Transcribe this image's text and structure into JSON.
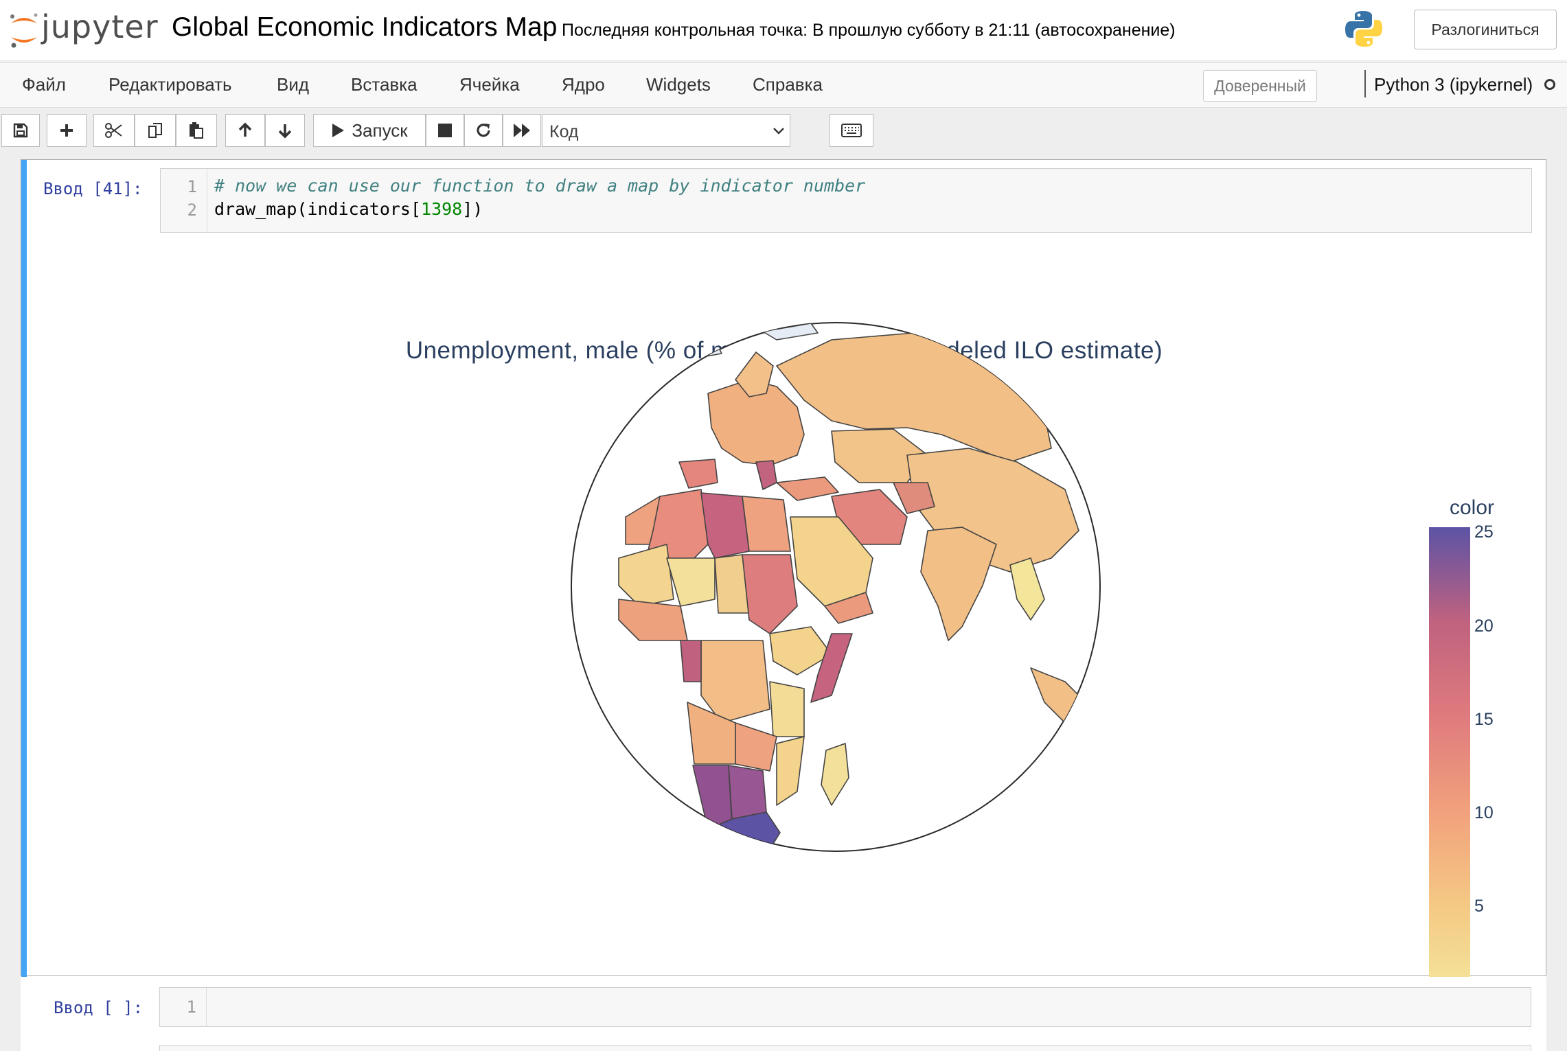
{
  "header": {
    "logo_text": "jupyter",
    "notebook_name": "Global Economic Indicators Map",
    "checkpoint": "Последняя контрольная точка: В прошлую субботу в 21:11   (автосохранение)",
    "logout_label": "Разлогиниться"
  },
  "menubar": {
    "items": [
      "Файл",
      "Редактировать",
      "Вид",
      "Вставка",
      "Ячейка",
      "Ядро",
      "Widgets",
      "Справка"
    ],
    "trusted_label": "Доверенный",
    "kernel_name": "Python 3 (ipykernel)"
  },
  "toolbar": {
    "run_label": "Запуск",
    "cell_type": "Код",
    "icons": [
      "save-icon",
      "plus-icon",
      "scissors-icon",
      "copy-icon",
      "paste-icon",
      "arrow-up-icon",
      "arrow-down-icon",
      "play-icon",
      "stop-icon",
      "restart-icon",
      "fast-forward-icon",
      "keyboard-icon"
    ]
  },
  "cells": [
    {
      "prompt": "Ввод [41]:",
      "lines": [
        "1",
        "2"
      ],
      "code": {
        "comment": "# now we can use our function to draw a map by indicator number",
        "call_prefix": "draw_map(indicators[",
        "call_number": "1398",
        "call_suffix": "])"
      }
    },
    {
      "prompt": "Ввод [ ]:",
      "lines": [
        "1"
      ]
    }
  ],
  "chart_data": {
    "type": "choropleth",
    "projection": "orthographic",
    "title": "Unemployment, male (% of male labor force) (modeled ILO estimate)",
    "colorbar": {
      "title": "color",
      "range": [
        0,
        25
      ],
      "ticks": [
        "25",
        "20",
        "15",
        "10",
        "5"
      ],
      "colorscale": [
        "#f3e79b",
        "#f5c884",
        "#f1a07c",
        "#df7a7e",
        "#c0627f",
        "#925291",
        "#5c53a5"
      ]
    },
    "regions": [
      {
        "name": "South Africa",
        "value": 25
      },
      {
        "name": "Namibia",
        "value": 21
      },
      {
        "name": "Botswana",
        "value": 20
      },
      {
        "name": "Libya",
        "value": 16
      },
      {
        "name": "Somalia",
        "value": 16
      },
      {
        "name": "Sudan",
        "value": 12
      },
      {
        "name": "Iran",
        "value": 10
      },
      {
        "name": "Algeria",
        "value": 10
      },
      {
        "name": "Egypt",
        "value": 8
      },
      {
        "name": "Russia",
        "value": 5
      },
      {
        "name": "Kazakhstan",
        "value": 5
      },
      {
        "name": "China",
        "value": 4
      },
      {
        "name": "India",
        "value": 5
      },
      {
        "name": "Saudi Arabia",
        "value": 3
      },
      {
        "name": "Niger",
        "value": 1
      },
      {
        "name": "Ethiopia",
        "value": 3
      },
      {
        "name": "Madagascar",
        "value": 2
      },
      {
        "name": "Thailand",
        "value": 1
      },
      {
        "name": "Tanzania",
        "value": 2
      }
    ]
  }
}
